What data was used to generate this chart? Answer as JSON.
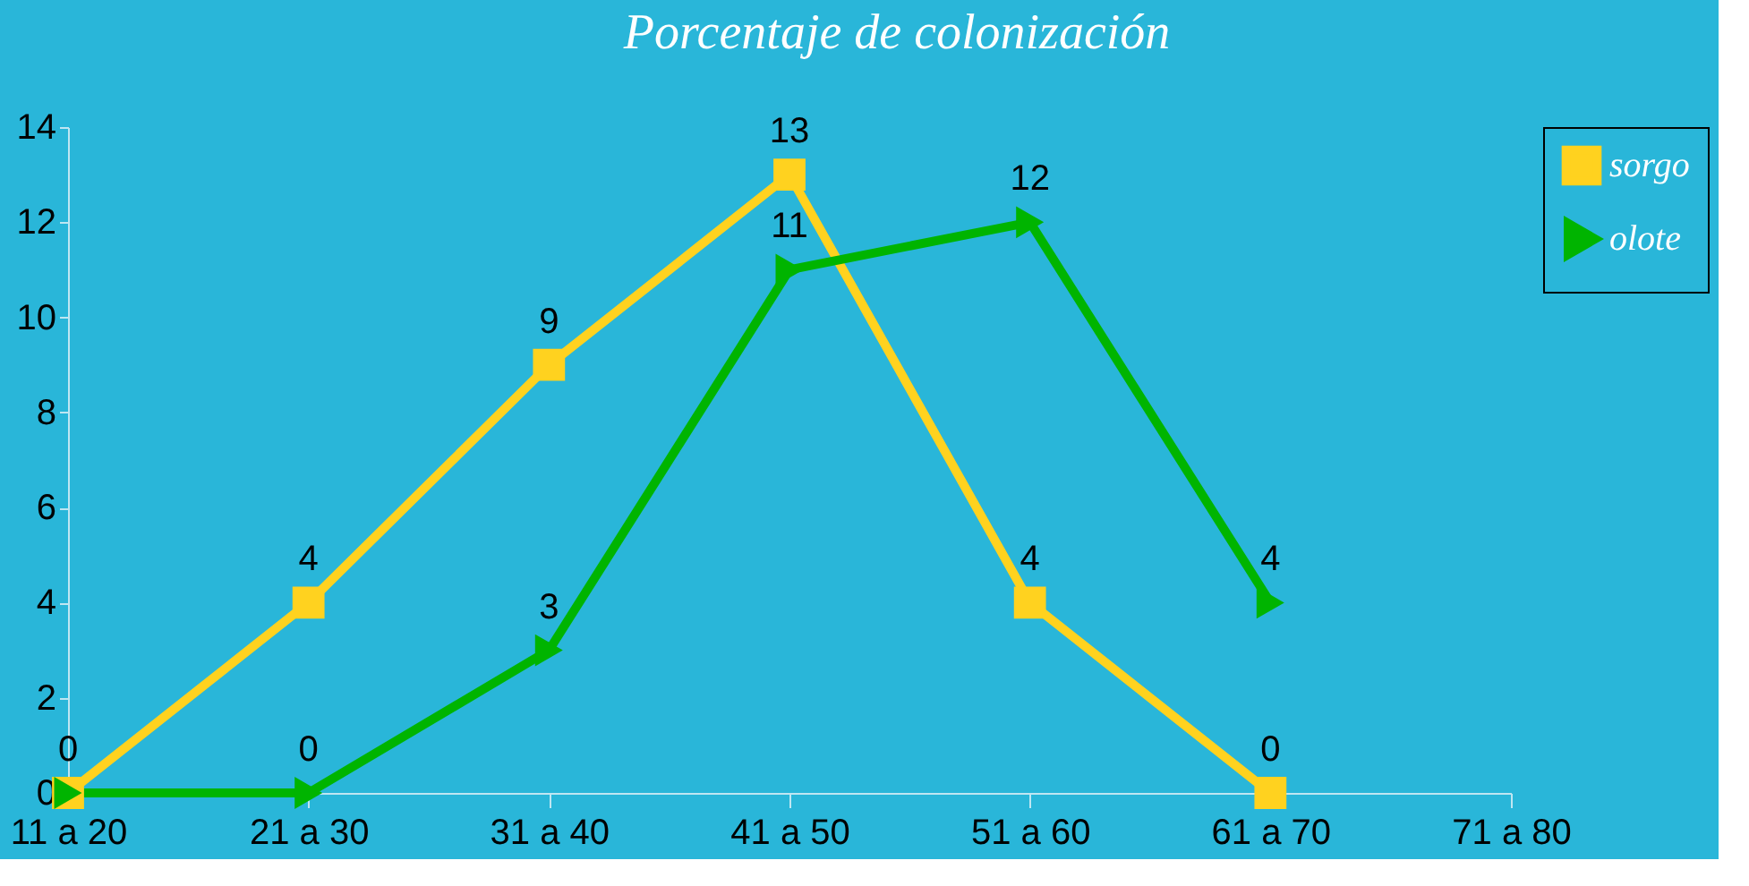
{
  "chart_data": {
    "type": "line",
    "title": "Porcentaje de colonización",
    "categories": [
      "11 a 20",
      "21 a 30",
      "31 a 40",
      "41 a 50",
      "51 a 60",
      "61 a 70",
      "71 a 80"
    ],
    "series": [
      {
        "name": "sorgo",
        "color": "#ffd21f",
        "marker": "square",
        "line_style": "solid",
        "values": [
          0,
          4,
          9,
          13,
          4,
          0,
          null
        ],
        "value_labels": [
          "0",
          "4",
          "9",
          "13",
          "4",
          "0",
          null
        ]
      },
      {
        "name": "olote",
        "color": "#00b400",
        "marker": "triangle",
        "line_style": "solid",
        "values": [
          0,
          0,
          3,
          11,
          12,
          4,
          null
        ],
        "value_labels": [
          null,
          "0",
          "3",
          "11",
          "12",
          "4",
          null
        ]
      }
    ],
    "ylim": [
      0,
      14
    ],
    "yticks": [
      0,
      2,
      4,
      6,
      8,
      10,
      12,
      14
    ],
    "grid": false,
    "legend": "right"
  }
}
